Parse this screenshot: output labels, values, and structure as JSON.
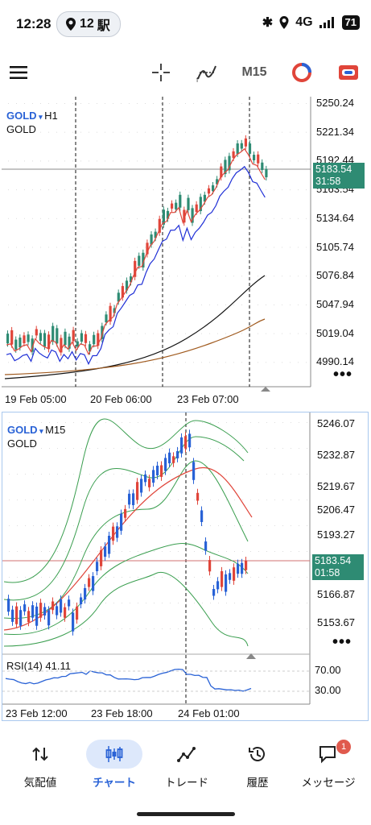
{
  "status_bar": {
    "time": "12:28",
    "location_count": "12",
    "location_label": "駅",
    "network": "4G",
    "battery": "71"
  },
  "toolbar": {
    "timeframe": "M15",
    "icons": [
      "menu-icon",
      "crosshair-icon",
      "indicators-icon",
      "timeframe-button",
      "trade-icon",
      "account-icon"
    ]
  },
  "chart_h1": {
    "symbol": "GOLD",
    "timeframe": "H1",
    "description": "GOLD",
    "price_ticks": [
      "5250.24",
      "5221.34",
      "5192.44",
      "5163.54",
      "5134.64",
      "5105.74",
      "5076.84",
      "5047.94",
      "5019.04",
      "4990.14"
    ],
    "time_ticks": [
      "19 Feb 05:00",
      "20 Feb 06:00",
      "23 Feb 07:00"
    ],
    "current_price": "5183.54",
    "countdown": "31:58"
  },
  "chart_m15": {
    "symbol": "GOLD",
    "timeframe": "M15",
    "description": "GOLD",
    "price_ticks": [
      "5246.07",
      "5232.87",
      "5219.67",
      "5206.47",
      "5193.27",
      "5166.87",
      "5153.67"
    ],
    "time_ticks": [
      "23 Feb 12:00",
      "23 Feb 18:00",
      "24 Feb 01:00"
    ],
    "current_price": "5183.54",
    "countdown": "01:58",
    "rsi_label": "RSI(14) 41.11",
    "rsi_ticks": [
      "70.00",
      "30.00"
    ]
  },
  "chart_data": [
    {
      "type": "line",
      "title": "GOLD H1",
      "ylim": [
        4975,
        5255
      ],
      "bull_color": "#2e8b73",
      "bear_color": "#e0453a",
      "ma": [
        {
          "color": "#e0453a"
        },
        {
          "color": "#1f2fd6"
        },
        {
          "color": "#111111"
        },
        {
          "color": "#a05a1e"
        }
      ]
    },
    {
      "type": "line",
      "title": "GOLD M15",
      "ylim": [
        5146,
        5250
      ],
      "bull_color": "#2962d6",
      "bear_color": "#e0453a"
    }
  ],
  "nav": {
    "items": [
      {
        "label": "気配値",
        "icon": "quotes-icon"
      },
      {
        "label": "チャート",
        "icon": "chart-icon"
      },
      {
        "label": "トレード",
        "icon": "trade-icon"
      },
      {
        "label": "履歴",
        "icon": "history-icon"
      },
      {
        "label": "メッセージ",
        "icon": "messages-icon",
        "badge": "1"
      }
    ]
  }
}
